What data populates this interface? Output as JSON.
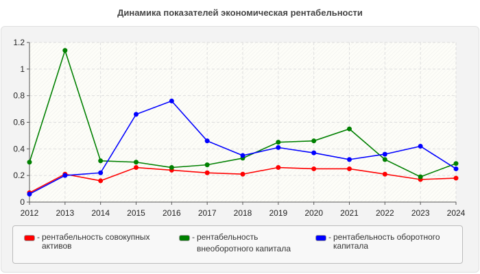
{
  "chart_data": {
    "type": "line",
    "title": "Динамика показателей экономическая рентабельности",
    "x": [
      "2012",
      "2013",
      "2014",
      "2015",
      "2016",
      "2017",
      "2018",
      "2019",
      "2020",
      "2021",
      "2022",
      "2023",
      "2024"
    ],
    "ylim": [
      0,
      1.2
    ],
    "yticks": [
      "0",
      "0.2",
      "0.4",
      "0.6",
      "0.8",
      "1",
      "1.2"
    ],
    "grid": true,
    "legend_position": "bottom",
    "series": [
      {
        "name": "рентабельность совокупных активов",
        "color": "#ff0000",
        "values": [
          0.07,
          0.21,
          0.16,
          0.26,
          0.24,
          0.22,
          0.21,
          0.26,
          0.25,
          0.25,
          0.21,
          0.17,
          0.18
        ]
      },
      {
        "name": "рентабельность внеоборотного капитала",
        "color": "#008000",
        "values": [
          0.3,
          1.14,
          0.31,
          0.3,
          0.26,
          0.28,
          0.33,
          0.45,
          0.46,
          0.55,
          0.32,
          0.19,
          0.29
        ]
      },
      {
        "name": "рентабельность оборотного капитала",
        "color": "#0000ff",
        "values": [
          0.06,
          0.2,
          0.22,
          0.66,
          0.76,
          0.46,
          0.35,
          0.41,
          0.37,
          0.32,
          0.36,
          0.42,
          0.25
        ]
      }
    ]
  },
  "legend": {
    "prefix": "-",
    "items": [
      {
        "line1": "рентабельность совокупных",
        "line2": "активов"
      },
      {
        "line1": "рентабельность",
        "line2": "внеоборотного капитала"
      },
      {
        "line1": "рентабельность оборотного",
        "line2": "капитала"
      }
    ]
  }
}
